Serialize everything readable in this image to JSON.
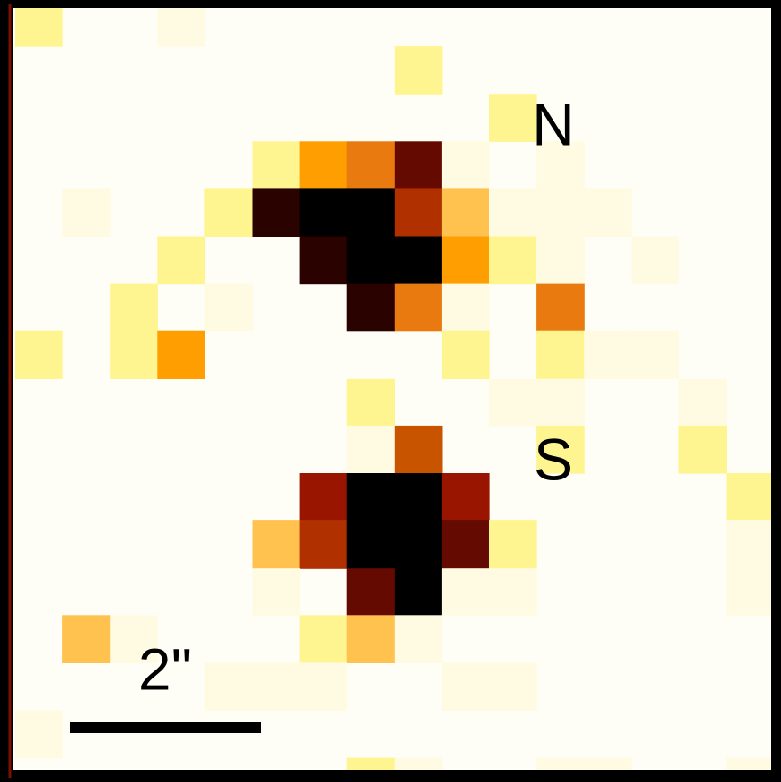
{
  "labels": {
    "north": "N",
    "south": "S",
    "scale": "2\""
  }
}
